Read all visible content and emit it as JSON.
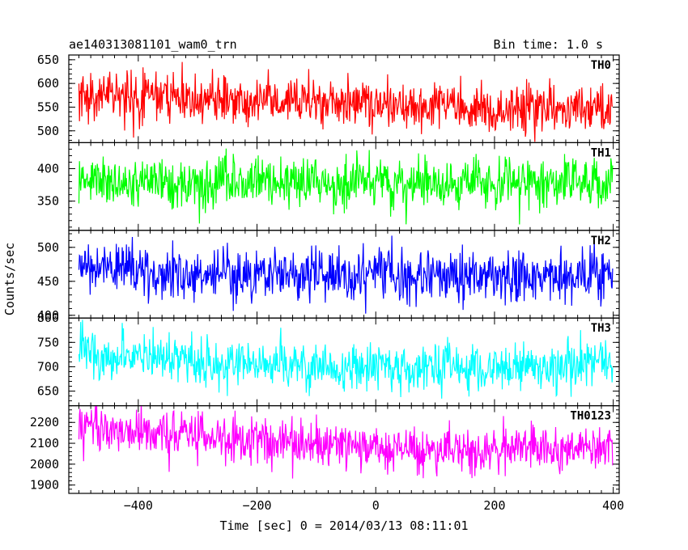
{
  "chart_data": {
    "type": "line",
    "title": "ae140313081101_wam0_trn",
    "subtitle": "Bin time: 1.0 s",
    "xlabel": "Time [sec] 0 = 2014/03/13 08:11:01",
    "ylabel": "Counts/sec",
    "xlim": [
      -517,
      410
    ],
    "x_ticks": [
      -400,
      -200,
      0,
      200,
      400
    ],
    "x_range_data": [
      -500,
      399
    ],
    "grid": false,
    "panels": [
      {
        "name": "TH0",
        "color": "#ff0000",
        "ylim": [
          475,
          660
        ],
        "y_ticks": [
          500,
          550,
          600,
          650
        ],
        "trend": {
          "x": [
            -500,
            -300,
            -100,
            100,
            300,
            399
          ],
          "y": [
            575,
            568,
            560,
            552,
            546,
            545
          ]
        },
        "noise_sd": 25
      },
      {
        "name": "TH1",
        "color": "#00ff00",
        "ylim": [
          305,
          440
        ],
        "y_ticks": [
          350,
          400
        ],
        "trend": {
          "x": [
            -500,
            -300,
            -100,
            100,
            300,
            399
          ],
          "y": [
            378,
            378,
            377,
            378,
            379,
            380
          ]
        },
        "noise_sd": 20
      },
      {
        "name": "TH2",
        "color": "#0000ff",
        "ylim": [
          396,
          525
        ],
        "y_ticks": [
          400,
          450,
          500
        ],
        "trend": {
          "x": [
            -500,
            -300,
            -100,
            100,
            300,
            399
          ],
          "y": [
            470,
            462,
            458,
            458,
            460,
            462
          ]
        },
        "noise_sd": 20
      },
      {
        "name": "TH3",
        "color": "#00ffff",
        "ylim": [
          620,
          800
        ],
        "y_ticks": [
          650,
          700,
          750,
          800
        ],
        "trend": {
          "x": [
            -500,
            -300,
            -100,
            100,
            300,
            399
          ],
          "y": [
            730,
            712,
            700,
            697,
            703,
            708
          ]
        },
        "noise_sd": 25
      },
      {
        "name": "TH0123",
        "color": "#ff00ff",
        "ylim": [
          1860,
          2280
        ],
        "y_ticks": [
          1900,
          2000,
          2100,
          2200
        ],
        "trend": {
          "x": [
            -500,
            -300,
            -100,
            100,
            300,
            399
          ],
          "y": [
            2170,
            2140,
            2095,
            2070,
            2070,
            2075
          ]
        },
        "noise_sd": 55
      }
    ]
  }
}
